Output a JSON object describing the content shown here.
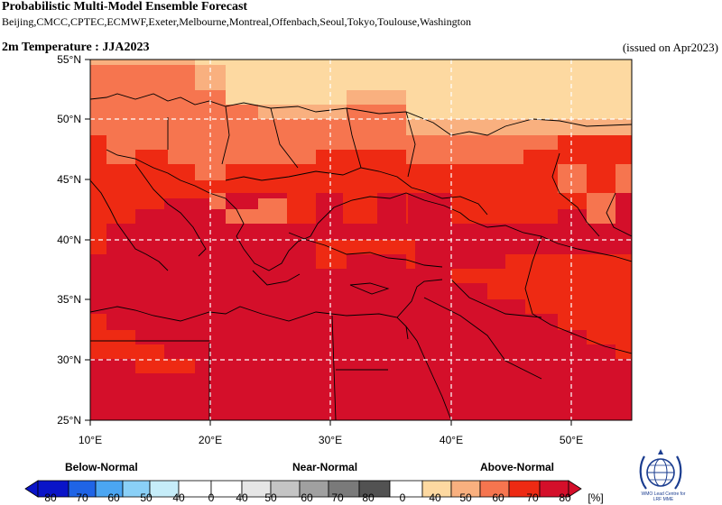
{
  "header": {
    "title": "Probabilistic Multi-Model Ensemble Forecast",
    "models": "Beijing,CMCC,CPTEC,ECMWF,Exeter,Melbourne,Montreal,Offenbach,Seoul,Tokyo,Toulouse,Washington",
    "variable": "2m Temperature : JJA2023",
    "issued": "(issued on Apr2023)"
  },
  "map": {
    "lon_labels": [
      "10°E",
      "20°E",
      "30°E",
      "40°E",
      "50°E"
    ],
    "lat_labels": [
      "25°N",
      "30°N",
      "35°N",
      "40°N",
      "45°N",
      "50°N",
      "55°N"
    ]
  },
  "legend": {
    "categories": [
      "Below-Normal",
      "Near-Normal",
      "Above-Normal"
    ],
    "labels": [
      "80",
      "70",
      "60",
      "50",
      "40",
      "0",
      "40",
      "50",
      "60",
      "70",
      "80",
      "0",
      "40",
      "50",
      "60",
      "70",
      "80",
      "[%]"
    ],
    "colors": {
      "below": [
        "#0a14c8",
        "#1f64e6",
        "#4ba6f2",
        "#8ad0f7",
        "#c6edf9"
      ],
      "near": [
        "#ffffff",
        "#e6e6e6",
        "#c4c4c4",
        "#a0a0a0",
        "#7a7a7a",
        "#525252"
      ],
      "above": [
        "#ffffff",
        "#fdd9a1",
        "#f9b07f",
        "#f6754f",
        "#ee2a13",
        "#d40f2a"
      ]
    }
  },
  "logo": {
    "caption_line1": "WMO Lead Centre for",
    "caption_line2": "LRF MME"
  },
  "colors": {
    "p40_50": "#fdd9a1",
    "p50_60": "#f9b07f",
    "p60_70": "#f6754f",
    "p70_80": "#ee2a13",
    "p80": "#d40f2a",
    "coast": "#000000",
    "grid": "#ffffff"
  }
}
